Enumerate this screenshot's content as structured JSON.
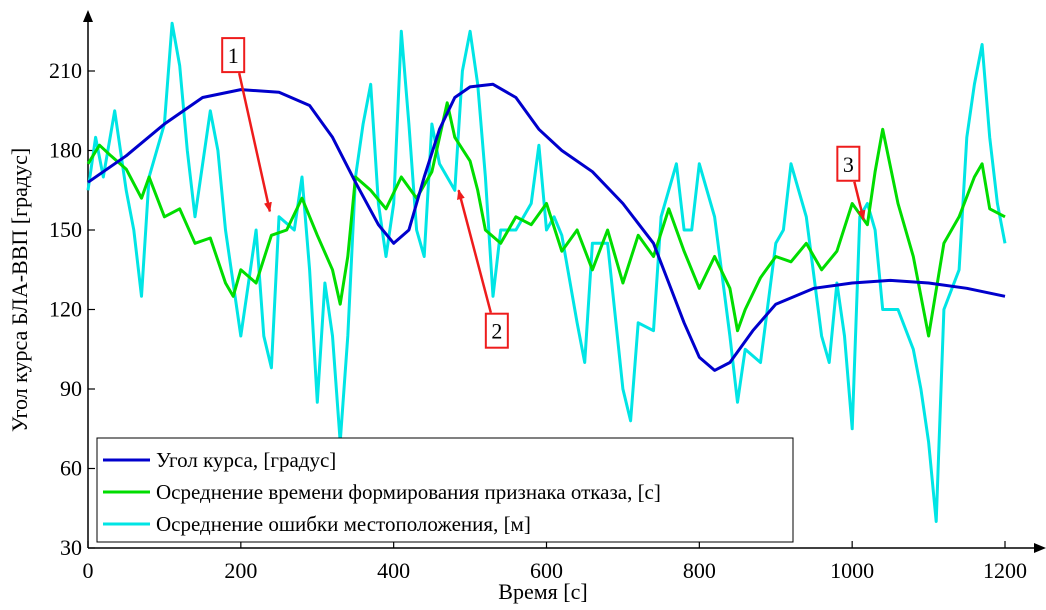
{
  "chart_data": {
    "type": "line",
    "xlabel": "Время [с]",
    "ylabel": "Угол курса БЛА-ВВП [градус]",
    "xlim": [
      0,
      1200
    ],
    "ylim": [
      30,
      230
    ],
    "x_ticks": [
      "0",
      "200",
      "400",
      "600",
      "800",
      "1000",
      "1200"
    ],
    "y_ticks": [
      "30",
      "60",
      "90",
      "120",
      "150",
      "180",
      "210"
    ],
    "grid": false,
    "legend_position": "bottom-left",
    "series": [
      {
        "name": "Угол курса, [градус]",
        "color": "#0000cc",
        "points": [
          [
            0,
            168
          ],
          [
            50,
            178
          ],
          [
            100,
            190
          ],
          [
            150,
            200
          ],
          [
            200,
            203
          ],
          [
            250,
            202
          ],
          [
            290,
            197
          ],
          [
            320,
            185
          ],
          [
            350,
            168
          ],
          [
            380,
            152
          ],
          [
            400,
            145
          ],
          [
            420,
            150
          ],
          [
            440,
            170
          ],
          [
            460,
            188
          ],
          [
            480,
            200
          ],
          [
            500,
            204
          ],
          [
            530,
            205
          ],
          [
            560,
            200
          ],
          [
            590,
            188
          ],
          [
            620,
            180
          ],
          [
            660,
            172
          ],
          [
            700,
            160
          ],
          [
            740,
            145
          ],
          [
            760,
            130
          ],
          [
            780,
            115
          ],
          [
            800,
            102
          ],
          [
            820,
            97
          ],
          [
            840,
            100
          ],
          [
            870,
            112
          ],
          [
            900,
            122
          ],
          [
            950,
            128
          ],
          [
            1000,
            130
          ],
          [
            1050,
            131
          ],
          [
            1100,
            130
          ],
          [
            1150,
            128
          ],
          [
            1200,
            125
          ]
        ]
      },
      {
        "name": "Осреднение времени формирования признака отказа, [с]",
        "color": "#00dd00",
        "points": [
          [
            0,
            175
          ],
          [
            15,
            182
          ],
          [
            30,
            178
          ],
          [
            50,
            173
          ],
          [
            70,
            162
          ],
          [
            80,
            170
          ],
          [
            100,
            155
          ],
          [
            120,
            158
          ],
          [
            140,
            145
          ],
          [
            160,
            147
          ],
          [
            180,
            130
          ],
          [
            190,
            125
          ],
          [
            200,
            135
          ],
          [
            220,
            130
          ],
          [
            240,
            148
          ],
          [
            260,
            150
          ],
          [
            280,
            162
          ],
          [
            300,
            148
          ],
          [
            320,
            135
          ],
          [
            330,
            122
          ],
          [
            340,
            140
          ],
          [
            350,
            170
          ],
          [
            370,
            165
          ],
          [
            390,
            158
          ],
          [
            410,
            170
          ],
          [
            430,
            162
          ],
          [
            450,
            172
          ],
          [
            470,
            198
          ],
          [
            480,
            185
          ],
          [
            500,
            176
          ],
          [
            510,
            165
          ],
          [
            520,
            150
          ],
          [
            540,
            145
          ],
          [
            560,
            155
          ],
          [
            580,
            152
          ],
          [
            600,
            160
          ],
          [
            620,
            142
          ],
          [
            640,
            150
          ],
          [
            660,
            135
          ],
          [
            680,
            150
          ],
          [
            700,
            130
          ],
          [
            720,
            148
          ],
          [
            740,
            140
          ],
          [
            760,
            158
          ],
          [
            780,
            142
          ],
          [
            800,
            128
          ],
          [
            820,
            140
          ],
          [
            840,
            128
          ],
          [
            850,
            112
          ],
          [
            860,
            120
          ],
          [
            880,
            132
          ],
          [
            900,
            140
          ],
          [
            920,
            138
          ],
          [
            940,
            145
          ],
          [
            960,
            135
          ],
          [
            980,
            142
          ],
          [
            1000,
            160
          ],
          [
            1020,
            152
          ],
          [
            1030,
            172
          ],
          [
            1040,
            188
          ],
          [
            1060,
            160
          ],
          [
            1080,
            140
          ],
          [
            1100,
            110
          ],
          [
            1120,
            145
          ],
          [
            1140,
            155
          ],
          [
            1160,
            170
          ],
          [
            1170,
            175
          ],
          [
            1180,
            158
          ],
          [
            1200,
            155
          ]
        ]
      },
      {
        "name": "Осреднение ошибки местоположения, [м]",
        "color": "#00e5e5",
        "points": [
          [
            0,
            165
          ],
          [
            10,
            185
          ],
          [
            20,
            170
          ],
          [
            35,
            195
          ],
          [
            50,
            165
          ],
          [
            60,
            150
          ],
          [
            70,
            125
          ],
          [
            80,
            170
          ],
          [
            100,
            190
          ],
          [
            110,
            228
          ],
          [
            120,
            212
          ],
          [
            130,
            180
          ],
          [
            140,
            155
          ],
          [
            160,
            195
          ],
          [
            170,
            180
          ],
          [
            180,
            150
          ],
          [
            200,
            110
          ],
          [
            210,
            130
          ],
          [
            220,
            150
          ],
          [
            230,
            110
          ],
          [
            240,
            98
          ],
          [
            250,
            155
          ],
          [
            270,
            150
          ],
          [
            280,
            170
          ],
          [
            290,
            135
          ],
          [
            300,
            85
          ],
          [
            310,
            130
          ],
          [
            320,
            110
          ],
          [
            330,
            70
          ],
          [
            340,
            110
          ],
          [
            350,
            170
          ],
          [
            360,
            190
          ],
          [
            370,
            205
          ],
          [
            380,
            160
          ],
          [
            390,
            140
          ],
          [
            400,
            160
          ],
          [
            410,
            225
          ],
          [
            420,
            190
          ],
          [
            430,
            150
          ],
          [
            440,
            140
          ],
          [
            450,
            190
          ],
          [
            460,
            175
          ],
          [
            480,
            165
          ],
          [
            490,
            210
          ],
          [
            500,
            225
          ],
          [
            510,
            205
          ],
          [
            520,
            170
          ],
          [
            530,
            125
          ],
          [
            540,
            150
          ],
          [
            560,
            150
          ],
          [
            580,
            160
          ],
          [
            590,
            182
          ],
          [
            600,
            150
          ],
          [
            610,
            155
          ],
          [
            620,
            148
          ],
          [
            640,
            115
          ],
          [
            650,
            100
          ],
          [
            660,
            145
          ],
          [
            680,
            145
          ],
          [
            700,
            90
          ],
          [
            710,
            78
          ],
          [
            720,
            115
          ],
          [
            740,
            112
          ],
          [
            750,
            155
          ],
          [
            770,
            175
          ],
          [
            780,
            150
          ],
          [
            790,
            150
          ],
          [
            800,
            175
          ],
          [
            820,
            155
          ],
          [
            840,
            110
          ],
          [
            850,
            85
          ],
          [
            860,
            105
          ],
          [
            880,
            100
          ],
          [
            900,
            145
          ],
          [
            910,
            150
          ],
          [
            920,
            175
          ],
          [
            940,
            155
          ],
          [
            960,
            110
          ],
          [
            970,
            100
          ],
          [
            980,
            130
          ],
          [
            990,
            110
          ],
          [
            1000,
            75
          ],
          [
            1010,
            155
          ],
          [
            1020,
            160
          ],
          [
            1030,
            150
          ],
          [
            1040,
            120
          ],
          [
            1060,
            120
          ],
          [
            1080,
            105
          ],
          [
            1090,
            90
          ],
          [
            1100,
            70
          ],
          [
            1110,
            40
          ],
          [
            1120,
            120
          ],
          [
            1140,
            135
          ],
          [
            1150,
            185
          ],
          [
            1160,
            205
          ],
          [
            1170,
            220
          ],
          [
            1180,
            185
          ],
          [
            1190,
            160
          ],
          [
            1200,
            145
          ]
        ]
      }
    ],
    "annotations": [
      {
        "label": "1",
        "box_x": 190,
        "box_y": 216,
        "arrow_to": [
          238,
          157
        ]
      },
      {
        "label": "2",
        "box_x": 535,
        "box_y": 112,
        "arrow_to": [
          485,
          165
        ]
      },
      {
        "label": "3",
        "box_x": 995,
        "box_y": 175,
        "arrow_to": [
          1015,
          154
        ]
      }
    ]
  }
}
